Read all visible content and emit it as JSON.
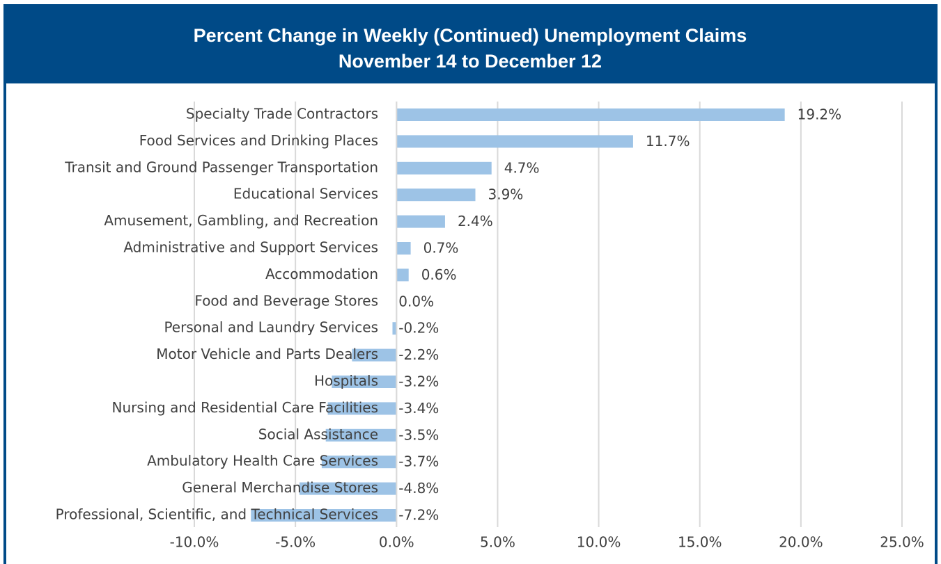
{
  "chart_data": {
    "type": "bar",
    "orientation": "horizontal",
    "title": "Percent Change in Weekly (Continued) Unemployment Claims",
    "subtitle": "November 14 to December 12",
    "categories": [
      "Specialty Trade Contractors",
      "Food Services and Drinking Places",
      "Transit and Ground Passenger Transportation",
      "Educational Services",
      "Amusement, Gambling, and Recreation",
      "Administrative and Support Services",
      "Accommodation",
      "Food and Beverage Stores",
      "Personal and Laundry Services",
      "Motor Vehicle and Parts Dealers",
      "Hospitals",
      "Nursing and Residential Care Facilities",
      "Social Assistance",
      "Ambulatory Health Care Services",
      "General Merchandise Stores",
      "Professional, Scientific, and Technical Services"
    ],
    "values": [
      19.2,
      11.7,
      4.7,
      3.9,
      2.4,
      0.7,
      0.6,
      0.0,
      -0.2,
      -2.2,
      -3.2,
      -3.4,
      -3.5,
      -3.7,
      -4.8,
      -7.2
    ],
    "value_labels": [
      "19.2%",
      "11.7%",
      "4.7%",
      "3.9%",
      "2.4%",
      "0.7%",
      "0.6%",
      "0.0%",
      "-0.2%",
      "-2.2%",
      "-3.2%",
      "-3.4%",
      "-3.5%",
      "-3.7%",
      "-4.8%",
      "-7.2%"
    ],
    "color": "#9dc3e6",
    "xlim": [
      -10,
      25
    ],
    "xticks": [
      {
        "value": -10,
        "label": "-10.0%"
      },
      {
        "value": -5,
        "label": "-5.0%"
      },
      {
        "value": 0,
        "label": "0.0%"
      },
      {
        "value": 5,
        "label": "5.0%"
      },
      {
        "value": 10,
        "label": "10.0%"
      },
      {
        "value": 15,
        "label": "15.0%"
      },
      {
        "value": 20,
        "label": "20.0%"
      },
      {
        "value": 25,
        "label": "25.0%"
      }
    ],
    "grid": true
  }
}
